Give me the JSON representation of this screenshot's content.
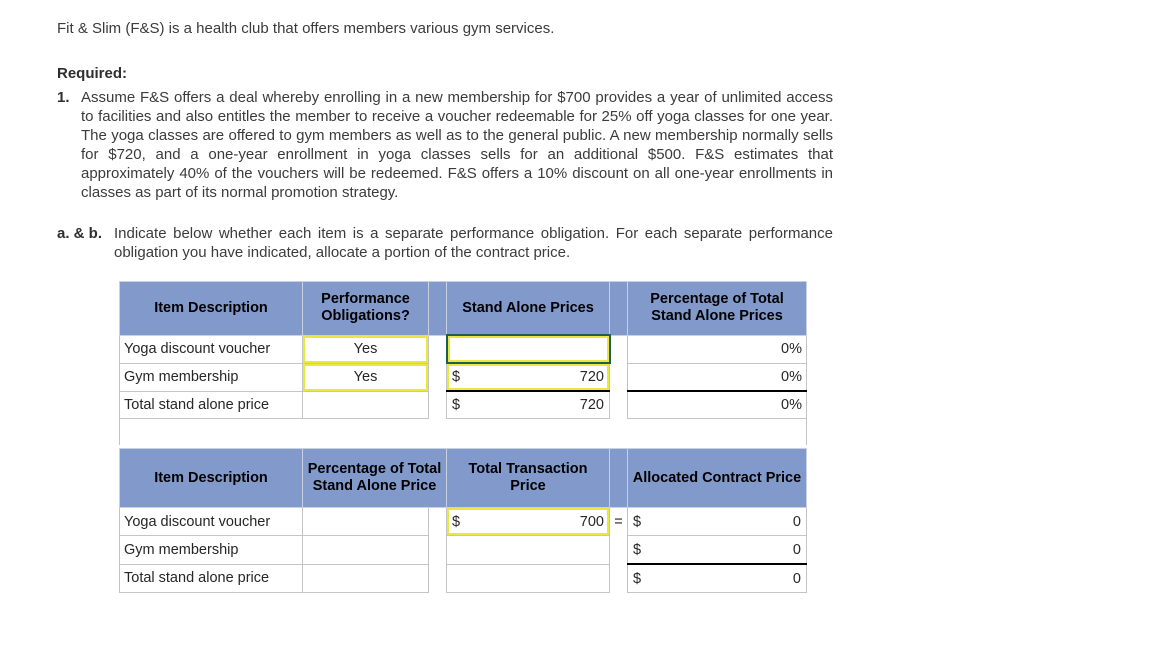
{
  "intro": "Fit & Slim (F&S) is a health club that offers members various gym services.",
  "required_label": "Required:",
  "item1": {
    "number": "1.",
    "text": "Assume F&S offers a deal whereby enrolling in a new membership for $700 provides a year of unlimited access to facilities and also entitles the member to receive a voucher redeemable for 25% off yoga classes for one year. The yoga classes are offered to gym members as well as to the general public. A new membership normally sells for $720, and a one-year enrollment in yoga classes sells for an additional $500. F&S estimates that approximately 40% of the vouchers will be redeemed. F&S offers a 10% discount on all one-year enrollments in classes as part of its normal promotion strategy."
  },
  "ab": {
    "label": "a. & b.",
    "text": "Indicate below whether each item is a separate performance obligation. For each separate performance obligation you have indicated, allocate a portion of the contract price."
  },
  "table1": {
    "headers": {
      "col1": "Item Description",
      "col2": "Performance Obligations?",
      "col3": "Stand Alone Prices",
      "col4": "Percentage of Total Stand Alone Prices"
    },
    "rows": [
      {
        "item": "Yoga discount voucher",
        "po": "Yes",
        "currency": "",
        "price": "",
        "pct": "0%"
      },
      {
        "item": "Gym membership",
        "po": "Yes",
        "currency": "$",
        "price": "720",
        "pct": "0%"
      },
      {
        "item": "Total stand alone price",
        "po": "",
        "currency": "$",
        "price": "720",
        "pct": "0%"
      }
    ]
  },
  "table2": {
    "headers": {
      "col1": "Item Description",
      "col2": "Percentage of Total Stand Alone Price",
      "col3": "Total Transaction Price",
      "col4": "Allocated Contract Price"
    },
    "equals": "=",
    "rows": [
      {
        "item": "Yoga discount voucher",
        "pct": "",
        "tp_currency": "$",
        "tp": "700",
        "ac_currency": "$",
        "ac": "0"
      },
      {
        "item": "Gym membership",
        "pct": "",
        "tp_currency": "",
        "tp": "",
        "ac_currency": "$",
        "ac": "0"
      },
      {
        "item": "Total stand alone price",
        "pct": "",
        "tp_currency": "",
        "tp": "",
        "ac_currency": "$",
        "ac": "0"
      }
    ]
  },
  "colors": {
    "header_blue": "#8199CB",
    "input_yellow": "#EDE73B",
    "active_cell_border": "#1E5F52",
    "total_line": "#000000"
  }
}
